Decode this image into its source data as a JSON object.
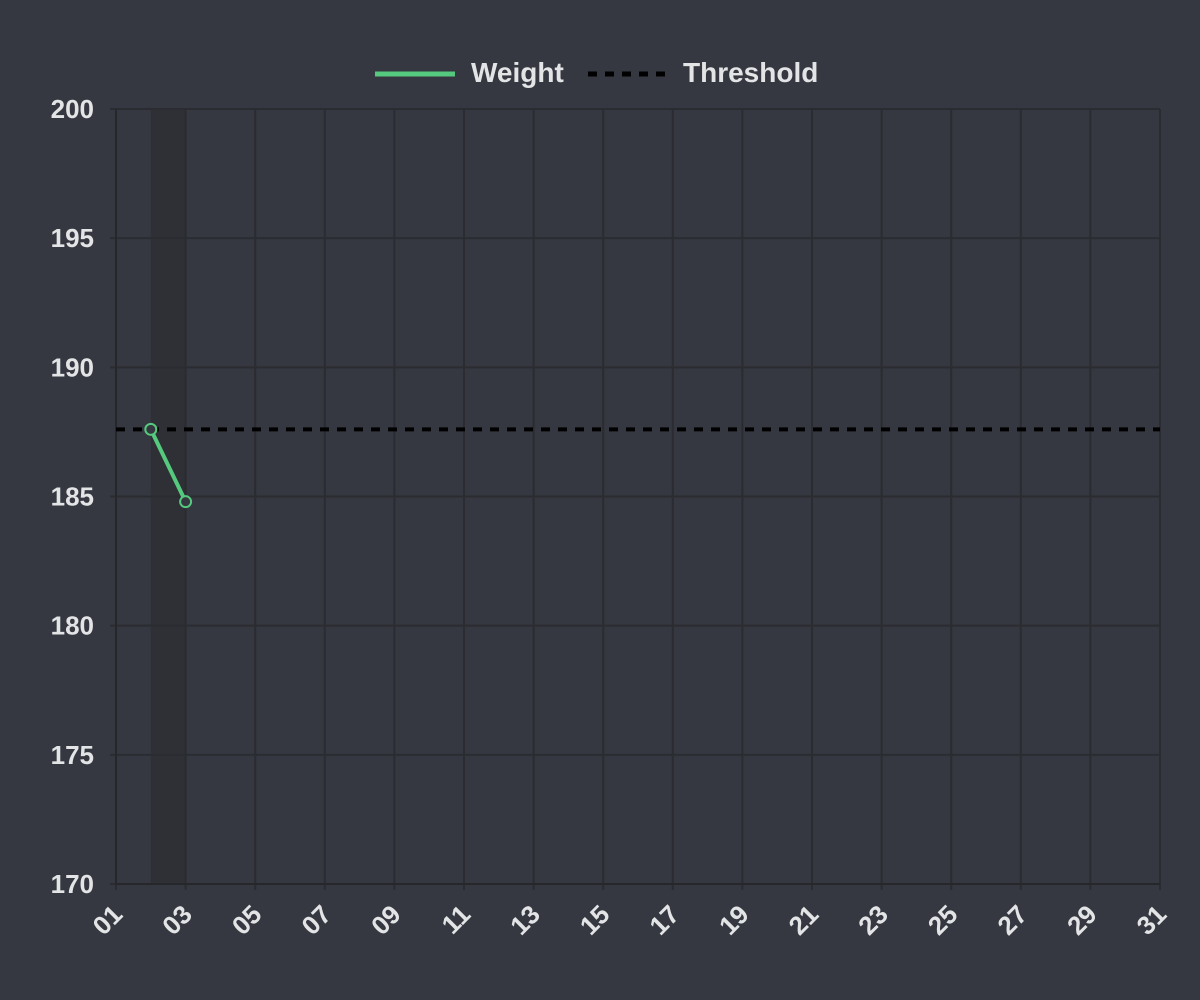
{
  "colors": {
    "background": "#353840",
    "grid": "#2a2c31",
    "axis": "#25272b",
    "weight_line": "#55c97d",
    "threshold_line": "#000000",
    "band": "#2e3035",
    "text": "#e3e4e6"
  },
  "chart_data": {
    "type": "line",
    "legend": {
      "position": "top-center",
      "items": [
        {
          "label": "Weight",
          "style": "solid",
          "color": "#55c97d"
        },
        {
          "label": "Threshold",
          "style": "dashed",
          "color": "#000000"
        }
      ]
    },
    "x_ticks": [
      "01",
      "03",
      "05",
      "07",
      "09",
      "11",
      "13",
      "15",
      "17",
      "19",
      "21",
      "23",
      "25",
      "27",
      "29",
      "31"
    ],
    "xlim": [
      1,
      31
    ],
    "ylim": [
      170,
      200
    ],
    "y_ticks": [
      "200",
      "195",
      "190",
      "185",
      "180",
      "175",
      "170"
    ],
    "grid": true,
    "series": [
      {
        "name": "Weight",
        "x": [
          2,
          3
        ],
        "y": [
          187.6,
          184.8
        ],
        "marker": "circle"
      },
      {
        "name": "Threshold",
        "constant": 187.6
      }
    ],
    "highlight_band": {
      "x_start": 2,
      "x_end": 3
    }
  }
}
